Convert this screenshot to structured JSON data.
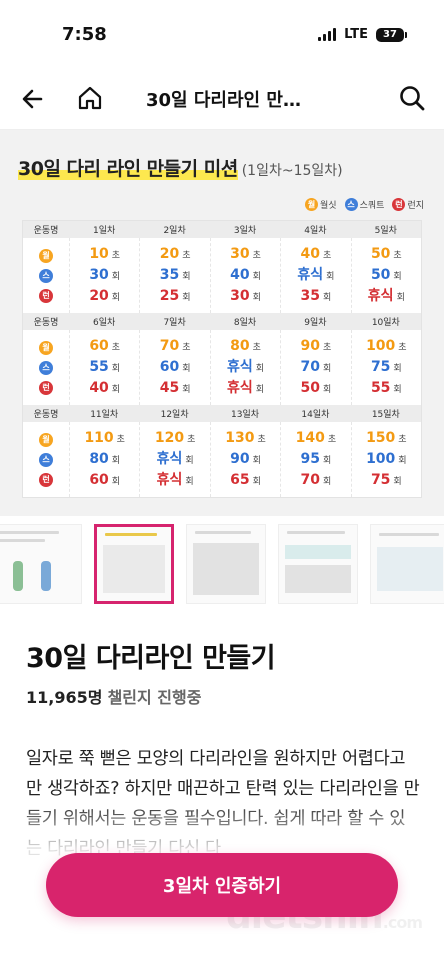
{
  "status_bar": {
    "time": "7:58",
    "network": "LTE",
    "battery": "37"
  },
  "nav": {
    "title": "30일 다리라인 만…"
  },
  "hero": {
    "title": "30일 다리 라인 만들기 미션",
    "subtitle": "(1일차~15일차)",
    "legend": [
      {
        "icon": "월",
        "label": "월싯"
      },
      {
        "icon": "스",
        "label": "스쿼트"
      },
      {
        "icon": "런",
        "label": "런지"
      }
    ],
    "header_label": "운동명",
    "blocks": [
      {
        "days": [
          "1일차",
          "2일차",
          "3일차",
          "4일차",
          "5일차"
        ],
        "cells": [
          [
            [
              "10",
              "초"
            ],
            [
              "30",
              "회"
            ],
            [
              "20",
              "회"
            ]
          ],
          [
            [
              "20",
              "초"
            ],
            [
              "35",
              "회"
            ],
            [
              "25",
              "회"
            ]
          ],
          [
            [
              "30",
              "초"
            ],
            [
              "40",
              "회"
            ],
            [
              "30",
              "회"
            ]
          ],
          [
            [
              "40",
              "초"
            ],
            [
              "휴식",
              "회"
            ],
            [
              "35",
              "회"
            ]
          ],
          [
            [
              "50",
              "초"
            ],
            [
              "50",
              "회"
            ],
            [
              "휴식",
              "회"
            ]
          ]
        ]
      },
      {
        "days": [
          "6일차",
          "7일차",
          "8일차",
          "9일차",
          "10일차"
        ],
        "cells": [
          [
            [
              "60",
              "초"
            ],
            [
              "55",
              "회"
            ],
            [
              "40",
              "회"
            ]
          ],
          [
            [
              "70",
              "초"
            ],
            [
              "60",
              "회"
            ],
            [
              "45",
              "회"
            ]
          ],
          [
            [
              "80",
              "초"
            ],
            [
              "휴식",
              "회"
            ],
            [
              "휴식",
              "회"
            ]
          ],
          [
            [
              "90",
              "초"
            ],
            [
              "70",
              "회"
            ],
            [
              "50",
              "회"
            ]
          ],
          [
            [
              "100",
              "초"
            ],
            [
              "75",
              "회"
            ],
            [
              "55",
              "회"
            ]
          ]
        ]
      },
      {
        "days": [
          "11일차",
          "12일차",
          "13일차",
          "14일차",
          "15일차"
        ],
        "cells": [
          [
            [
              "110",
              "초"
            ],
            [
              "80",
              "회"
            ],
            [
              "60",
              "회"
            ]
          ],
          [
            [
              "120",
              "초"
            ],
            [
              "휴식",
              "회"
            ],
            [
              "휴식",
              "회"
            ]
          ],
          [
            [
              "130",
              "초"
            ],
            [
              "90",
              "회"
            ],
            [
              "65",
              "회"
            ]
          ],
          [
            [
              "140",
              "초"
            ],
            [
              "95",
              "회"
            ],
            [
              "70",
              "회"
            ]
          ],
          [
            [
              "150",
              "초"
            ],
            [
              "100",
              "회"
            ],
            [
              "75",
              "회"
            ]
          ]
        ]
      }
    ]
  },
  "challenge": {
    "title": "30일 다리라인 만들기",
    "count": "11,965명",
    "count_label": "챌린지 진행중",
    "description": "일자로 쭉 뻗은 모양의 다리라인을 원하지만 어렵다고만 생각하죠? 하지만 매끈하고 탄력 있는 다리라인을 만들기 위해서는 운동을 필수입니다. 쉽게 따라 할 수 있는 다리라인 만들기 다신 다"
  },
  "cta": {
    "label": "3일차 인증하기"
  },
  "watermark": {
    "text": "dietshin",
    "suffix": ".com"
  },
  "colors": {
    "accent": "#d8246c",
    "highlight": "#fde84f",
    "orange": "#f39a12",
    "blue": "#2e6fd0",
    "red": "#d42f33"
  }
}
